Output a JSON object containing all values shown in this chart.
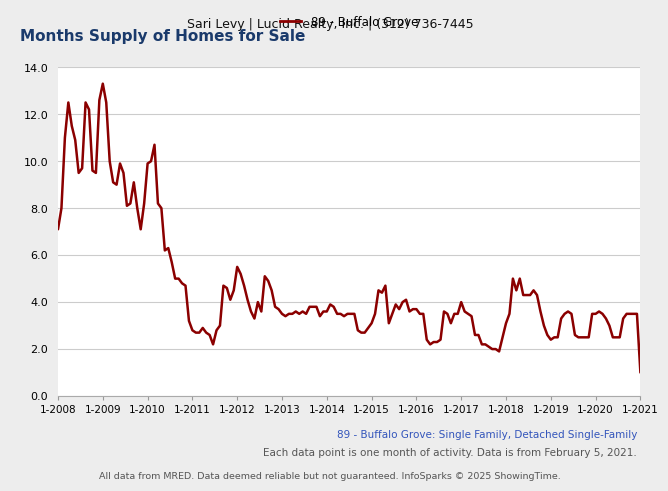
{
  "header_text": "Sari Levy | Lucid Realty, Inc. | (312) 736-7445",
  "chart_title": "Months Supply of Homes for Sale",
  "legend_entry": "89 - Buffalo Grove",
  "line_color": "#8b0000",
  "footer_line1": "89 - Buffalo Grove: Single Family, Detached Single-Family",
  "footer_line2": "Each data point is one month of activity. Data is from February 5, 2021.",
  "footer_line3": "All data from MRED. Data deemed reliable but not guaranteed. InfoSparks © 2025 ShowingTime.",
  "values": [
    7.1,
    8.0,
    11.0,
    12.5,
    11.5,
    10.9,
    9.5,
    9.7,
    12.5,
    12.2,
    9.6,
    9.5,
    12.6,
    13.3,
    12.5,
    10.0,
    9.1,
    9.0,
    9.9,
    9.5,
    8.1,
    8.2,
    9.1,
    8.0,
    7.1,
    8.2,
    9.9,
    10.0,
    10.7,
    8.2,
    8.0,
    6.2,
    6.3,
    5.7,
    5.0,
    5.0,
    4.8,
    4.7,
    3.2,
    2.8,
    2.7,
    2.7,
    2.9,
    2.7,
    2.6,
    2.2,
    2.8,
    3.0,
    4.7,
    4.6,
    4.1,
    4.5,
    5.5,
    5.2,
    4.7,
    4.1,
    3.6,
    3.3,
    4.0,
    3.6,
    5.1,
    4.9,
    4.5,
    3.8,
    3.7,
    3.5,
    3.4,
    3.5,
    3.5,
    3.6,
    3.5,
    3.6,
    3.5,
    3.8,
    3.8,
    3.8,
    3.4,
    3.6,
    3.6,
    3.9,
    3.8,
    3.5,
    3.5,
    3.4,
    3.5,
    3.5,
    3.5,
    2.8,
    2.7,
    2.7,
    2.9,
    3.1,
    3.5,
    4.5,
    4.4,
    4.7,
    3.1,
    3.5,
    3.9,
    3.7,
    4.0,
    4.1,
    3.6,
    3.7,
    3.7,
    3.5,
    3.5,
    2.4,
    2.2,
    2.3,
    2.3,
    2.4,
    3.6,
    3.5,
    3.1,
    3.5,
    3.5,
    4.0,
    3.6,
    3.5,
    3.4,
    2.6,
    2.6,
    2.2,
    2.2,
    2.1,
    2.0,
    2.0,
    1.9,
    2.5,
    3.1,
    3.5,
    5.0,
    4.5,
    5.0,
    4.3,
    4.3,
    4.3,
    4.5,
    4.3,
    3.6,
    3.0,
    2.6,
    2.4,
    2.5,
    2.5,
    3.3,
    3.5,
    3.6,
    3.5,
    2.6,
    2.5,
    2.5,
    2.5,
    2.5,
    3.5,
    3.5,
    3.6,
    3.5,
    3.3,
    3.0,
    2.5,
    2.5,
    2.5,
    3.3,
    3.5,
    3.5,
    3.5,
    3.5,
    1.0
  ],
  "x_tick_labels": [
    "1-2008",
    "1-2009",
    "1-2010",
    "1-2011",
    "1-2012",
    "1-2013",
    "1-2014",
    "1-2015",
    "1-2016",
    "1-2017",
    "1-2018",
    "1-2019",
    "1-2020",
    "1-2021"
  ],
  "y_max": 14.0,
  "y_min": 0.0,
  "y_ticks": [
    0.0,
    2.0,
    4.0,
    6.0,
    8.0,
    10.0,
    12.0,
    14.0
  ],
  "bg_color": "#ededed",
  "plot_bg_color": "#ffffff",
  "header_bg": "#e3e3e3",
  "grid_color": "#cccccc",
  "title_color": "#1a3a6b",
  "footer1_color": "#3355bb",
  "footer23_color": "#555555"
}
